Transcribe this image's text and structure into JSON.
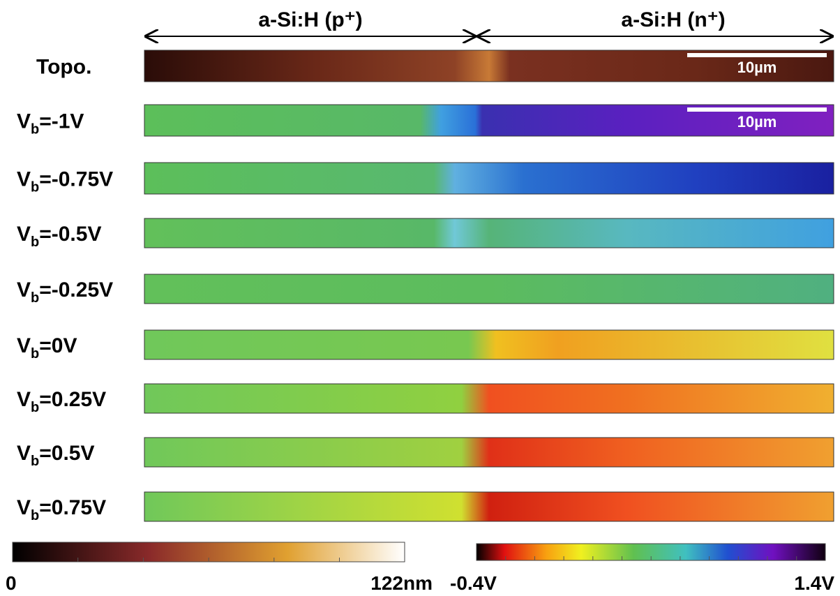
{
  "header": {
    "left_region": "a-Si:H (p⁺)",
    "right_region": "a-Si:H (n⁺)"
  },
  "rows": [
    {
      "label": "Topo.",
      "scale_bar": "10µm"
    },
    {
      "label": {
        "main": "V",
        "sub": "b",
        "rest": "=-1V"
      },
      "scale_bar": "10µm"
    },
    {
      "label": {
        "main": "V",
        "sub": "b",
        "rest": "=-0.75V"
      }
    },
    {
      "label": {
        "main": "V",
        "sub": "b",
        "rest": "=-0.5V"
      }
    },
    {
      "label": {
        "main": "V",
        "sub": "b",
        "rest": "=-0.25V"
      }
    },
    {
      "label": {
        "main": "V",
        "sub": "b",
        "rest": "=0V"
      }
    },
    {
      "label": {
        "main": "V",
        "sub": "b",
        "rest": "=0.25V"
      }
    },
    {
      "label": {
        "main": "V",
        "sub": "b",
        "rest": "=0.5V"
      }
    },
    {
      "label": {
        "main": "V",
        "sub": "b",
        "rest": "=0.75V"
      }
    }
  ],
  "colorbars": {
    "height": {
      "min": "0",
      "max": "122nm"
    },
    "potential": {
      "min": "-0.4V",
      "max": "1.4V"
    }
  }
}
